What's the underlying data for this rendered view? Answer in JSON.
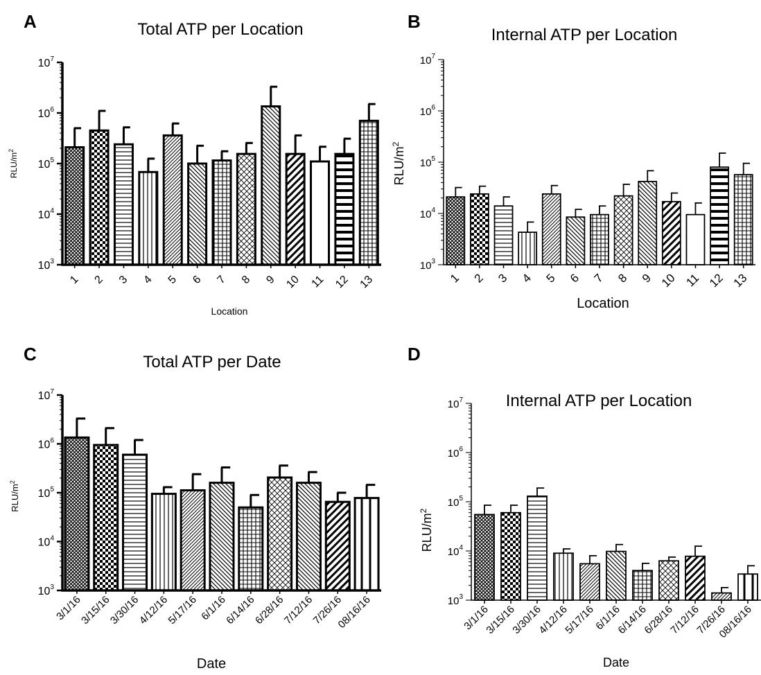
{
  "chart_data": [
    {
      "panel": "A",
      "type": "bar",
      "title": "Total ATP per Location",
      "xlabel": "Location",
      "ylabel": "RLU/m",
      "ylabel_sup": "2",
      "yscale": "log",
      "ylim": [
        1000,
        10000000
      ],
      "yticks": [
        {
          "base": "10",
          "exp": "3"
        },
        {
          "base": "10",
          "exp": "4"
        },
        {
          "base": "10",
          "exp": "5"
        },
        {
          "base": "10",
          "exp": "6"
        },
        {
          "base": "10",
          "exp": "7"
        }
      ],
      "categories": [
        "1",
        "2",
        "3",
        "4",
        "5",
        "6",
        "7",
        "8",
        "9",
        "10",
        "11",
        "12",
        "13"
      ],
      "values": [
        210000,
        450000,
        240000,
        68000,
        360000,
        100000,
        115000,
        155000,
        1350000,
        155000,
        110000,
        155000,
        700000
      ],
      "error_upper": [
        500000,
        1100000,
        520000,
        125000,
        620000,
        225000,
        175000,
        255000,
        3300000,
        360000,
        215000,
        310000,
        1500000
      ],
      "patterns": [
        "crosshatch",
        "checker",
        "hstripe",
        "vstripe",
        "diagfine",
        "diagback",
        "grid",
        "diamond",
        "diagback",
        "diagbold",
        "blank",
        "hbold",
        "grid"
      ]
    },
    {
      "panel": "B",
      "type": "bar",
      "title": "Internal ATP per Location",
      "xlabel": "Location",
      "ylabel": "RLU/m",
      "ylabel_sup": "2",
      "yscale": "log",
      "ylim": [
        1000,
        10000000
      ],
      "yticks": [
        {
          "base": "10",
          "exp": "3"
        },
        {
          "base": "10",
          "exp": "4"
        },
        {
          "base": "10",
          "exp": "5"
        },
        {
          "base": "10",
          "exp": "6"
        },
        {
          "base": "10",
          "exp": "7"
        }
      ],
      "categories": [
        "1",
        "2",
        "3",
        "4",
        "5",
        "6",
        "7",
        "8",
        "9",
        "10",
        "11",
        "12",
        "13"
      ],
      "values": [
        21000,
        24000,
        14000,
        4300,
        24000,
        8500,
        9500,
        22000,
        42000,
        17000,
        9500,
        80000,
        57000
      ],
      "error_upper": [
        32000,
        34000,
        21000,
        6800,
        35000,
        12000,
        14000,
        37000,
        68000,
        25000,
        16000,
        150000,
        95000
      ],
      "patterns": [
        "crosshatch",
        "checker",
        "hstripe",
        "vstripe",
        "diagfine",
        "diagback",
        "grid",
        "diamond",
        "diagback",
        "diagbold",
        "blank",
        "hbold",
        "grid"
      ]
    },
    {
      "panel": "C",
      "type": "bar",
      "title": "Total ATP per Date",
      "xlabel": "Date",
      "ylabel": "RLU/m",
      "ylabel_sup": "2",
      "yscale": "log",
      "ylim": [
        1000,
        10000000
      ],
      "yticks": [
        {
          "base": "10",
          "exp": "3"
        },
        {
          "base": "10",
          "exp": "4"
        },
        {
          "base": "10",
          "exp": "5"
        },
        {
          "base": "10",
          "exp": "6"
        },
        {
          "base": "10",
          "exp": "7"
        }
      ],
      "categories": [
        "3/1/16",
        "3/15/16",
        "3/30/16",
        "4/12/16",
        "5/17/16",
        "6/1/16",
        "6/14/16",
        "6/28/16",
        "7/12/16",
        "7/26/16",
        "08/16/16"
      ],
      "values": [
        1350000,
        950000,
        600000,
        95000,
        112000,
        160000,
        50000,
        205000,
        160000,
        65000,
        78000
      ],
      "error_upper": [
        3300000,
        2100000,
        1200000,
        130000,
        240000,
        330000,
        90000,
        360000,
        265000,
        100000,
        145000
      ],
      "patterns": [
        "crosshatch",
        "checker",
        "hstripe",
        "vstripe",
        "diagfine",
        "diagback",
        "grid",
        "diamond",
        "diagback",
        "diagbold",
        "vbold"
      ]
    },
    {
      "panel": "D",
      "type": "bar",
      "title": "Internal ATP per Location",
      "xlabel": "Date",
      "ylabel": "RLU/m",
      "ylabel_sup": "2",
      "yscale": "log",
      "ylim": [
        1000,
        10000000
      ],
      "yticks": [
        {
          "base": "10",
          "exp": "3"
        },
        {
          "base": "10",
          "exp": "4"
        },
        {
          "base": "10",
          "exp": "5"
        },
        {
          "base": "10",
          "exp": "6"
        },
        {
          "base": "10",
          "exp": "7"
        }
      ],
      "categories": [
        "3/1/16",
        "3/15/16",
        "3/30/16",
        "4/12/16",
        "5/17/16",
        "6/1/16",
        "6/14/16",
        "6/28/16",
        "7/12/16",
        "7/26/16",
        "08/16/16"
      ],
      "values": [
        55000,
        60000,
        130000,
        9000,
        5500,
        9800,
        4000,
        6300,
        7800,
        1400,
        3400
      ],
      "error_upper": [
        85000,
        85000,
        190000,
        11000,
        8000,
        13500,
        5600,
        7500,
        12500,
        1800,
        5000
      ],
      "patterns": [
        "crosshatch",
        "checker",
        "hstripe",
        "vstripe",
        "diagfine",
        "diagback",
        "grid",
        "diamond",
        "diagbold",
        "diagfine",
        "vbold"
      ]
    }
  ]
}
